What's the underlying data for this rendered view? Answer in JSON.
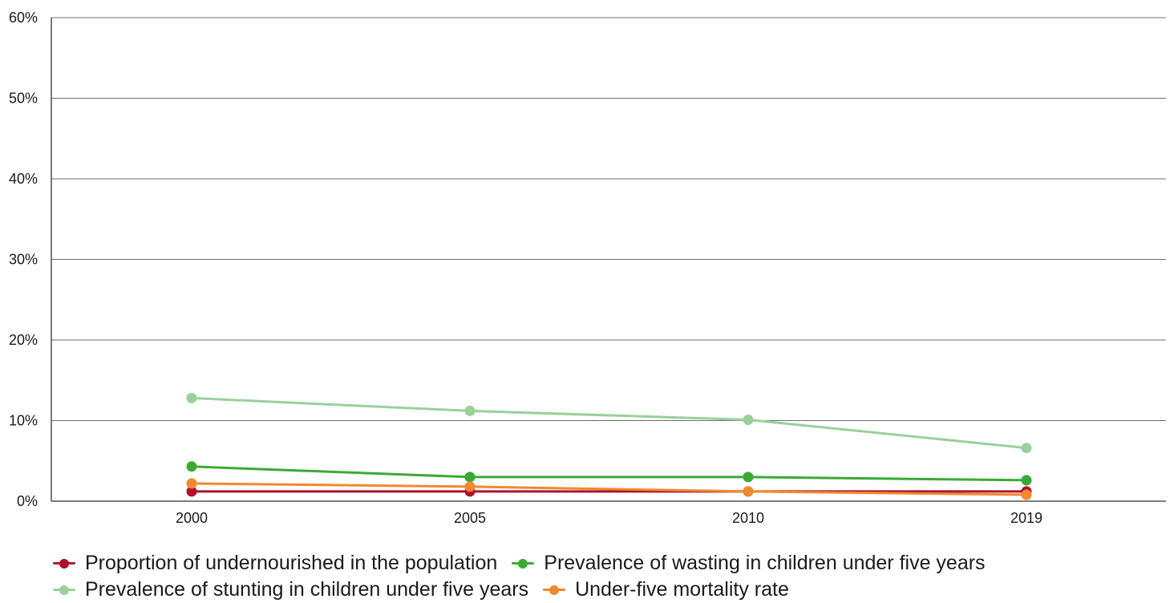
{
  "chart_data": {
    "type": "line",
    "title": "",
    "xlabel": "",
    "ylabel": "",
    "categories": [
      "2000",
      "2005",
      "2010",
      "2019"
    ],
    "ylim": [
      0,
      60
    ],
    "yticks": [
      "0%",
      "10%",
      "20%",
      "30%",
      "40%",
      "50%",
      "60%"
    ],
    "grid": true,
    "legend_position": "bottom",
    "series": [
      {
        "name": "Proportion of undernourished in the population",
        "color": "#b0102f",
        "values": [
          1.2,
          1.2,
          1.2,
          1.2
        ]
      },
      {
        "name": "Prevalence of wasting in children under five years",
        "color": "#3aaa35",
        "values": [
          4.3,
          3.0,
          3.0,
          2.6
        ]
      },
      {
        "name": "Prevalence of stunting in children under five years",
        "color": "#98d19a",
        "values": [
          12.8,
          11.2,
          10.1,
          6.6
        ]
      },
      {
        "name": "Under-five mortality rate",
        "color": "#f0892e",
        "values": [
          2.2,
          1.8,
          1.2,
          0.8
        ]
      }
    ]
  }
}
